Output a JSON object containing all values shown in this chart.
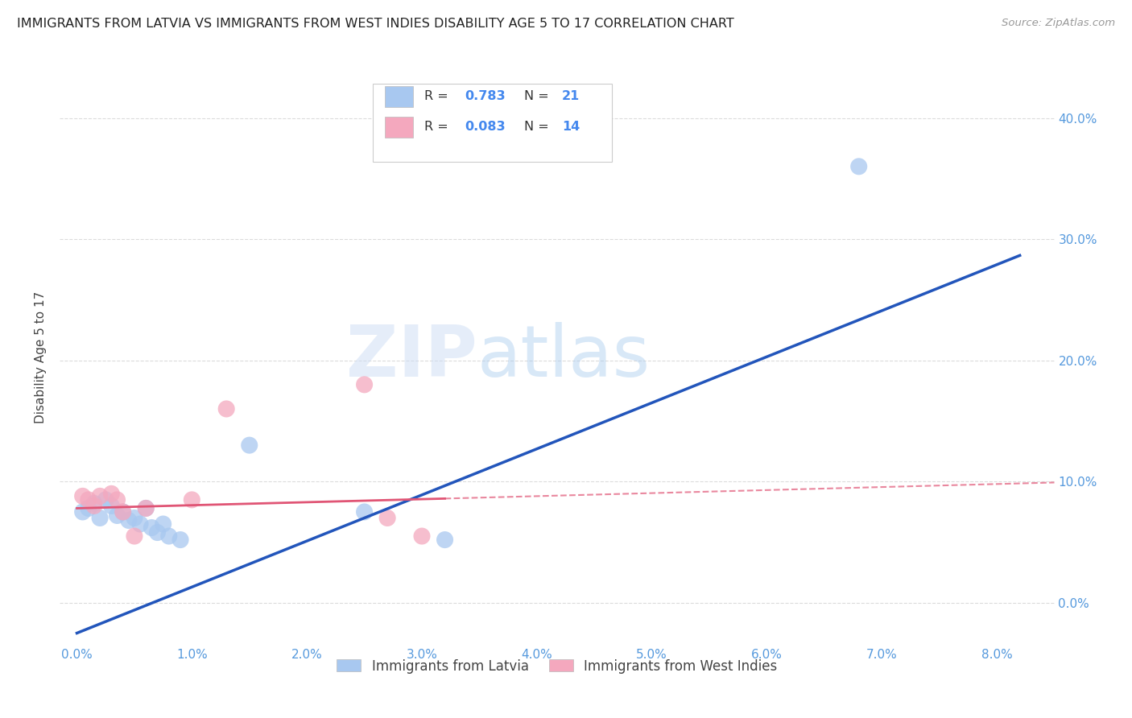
{
  "title": "IMMIGRANTS FROM LATVIA VS IMMIGRANTS FROM WEST INDIES DISABILITY AGE 5 TO 17 CORRELATION CHART",
  "source": "Source: ZipAtlas.com",
  "xlabel_ticks": [
    0.0,
    1.0,
    2.0,
    3.0,
    4.0,
    5.0,
    6.0,
    7.0,
    8.0
  ],
  "ylabel_ticks": [
    0.0,
    10.0,
    20.0,
    30.0,
    40.0
  ],
  "xlim": [
    -0.15,
    8.5
  ],
  "ylim": [
    -3.5,
    44.0
  ],
  "ylabel": "Disability Age 5 to 17",
  "legend_bottom": [
    "Immigrants from Latvia",
    "Immigrants from West Indies"
  ],
  "r_latvia": 0.783,
  "n_latvia": 21,
  "r_west_indies": 0.083,
  "n_west_indies": 14,
  "blue_color": "#A8C8F0",
  "pink_color": "#F4A8BE",
  "blue_line_color": "#2255BB",
  "pink_line_color": "#E05575",
  "scatter_blue": [
    [
      0.05,
      7.5
    ],
    [
      0.1,
      7.8
    ],
    [
      0.15,
      8.2
    ],
    [
      0.2,
      7.0
    ],
    [
      0.25,
      8.5
    ],
    [
      0.3,
      8.0
    ],
    [
      0.35,
      7.2
    ],
    [
      0.4,
      7.5
    ],
    [
      0.45,
      6.8
    ],
    [
      0.5,
      7.0
    ],
    [
      0.55,
      6.5
    ],
    [
      0.6,
      7.8
    ],
    [
      0.65,
      6.2
    ],
    [
      0.7,
      5.8
    ],
    [
      0.75,
      6.5
    ],
    [
      0.8,
      5.5
    ],
    [
      0.9,
      5.2
    ],
    [
      1.5,
      13.0
    ],
    [
      2.5,
      7.5
    ],
    [
      3.2,
      5.2
    ],
    [
      6.8,
      36.0
    ]
  ],
  "scatter_pink": [
    [
      0.05,
      8.8
    ],
    [
      0.1,
      8.5
    ],
    [
      0.15,
      8.0
    ],
    [
      0.2,
      8.8
    ],
    [
      0.3,
      9.0
    ],
    [
      0.35,
      8.5
    ],
    [
      0.4,
      7.5
    ],
    [
      0.5,
      5.5
    ],
    [
      0.6,
      7.8
    ],
    [
      1.0,
      8.5
    ],
    [
      1.3,
      16.0
    ],
    [
      2.5,
      18.0
    ],
    [
      2.7,
      7.0
    ],
    [
      3.0,
      5.5
    ]
  ],
  "blue_line": [
    -2.5,
    3.8
  ],
  "pink_line_solid": [
    7.8,
    0.25
  ],
  "pink_line_dashed": [
    7.8,
    0.25
  ],
  "watermark_zip": "ZIP",
  "watermark_atlas": "atlas",
  "grid_color": "#CCCCCC",
  "background_color": "#FFFFFF",
  "title_fontsize": 11.5,
  "axis_label_fontsize": 11,
  "tick_fontsize": 11,
  "tick_color": "#5599DD",
  "legend_text_color": "#333333",
  "legend_value_color": "#4488EE"
}
